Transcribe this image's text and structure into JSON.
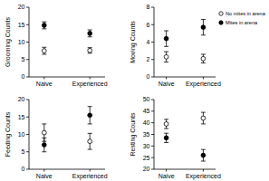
{
  "chart_data": [
    {
      "type": "dot",
      "y_label": "Grooming Counts",
      "categories": [
        "Naive",
        "Experienced"
      ],
      "ylim": [
        0,
        20
      ],
      "yticks": [
        0,
        5,
        10,
        15,
        20
      ],
      "series": [
        {
          "color": "#000000",
          "marker": "open",
          "values": [
            7.5,
            7.6
          ],
          "errors": [
            1.0,
            0.8
          ]
        },
        {
          "color": "#000000",
          "marker": "filled",
          "values": [
            14.8,
            12.5
          ],
          "errors": [
            1.0,
            1.0
          ]
        }
      ]
    },
    {
      "type": "dot",
      "y_label": "Moving Counts",
      "categories": [
        "Naive",
        "Experienced"
      ],
      "ylim": [
        0,
        8
      ],
      "yticks": [
        0,
        2,
        4,
        6,
        8
      ],
      "legend": "right",
      "series": [
        {
          "name": "No mites in arena",
          "color": "#000000",
          "marker": "open",
          "values": [
            2.3,
            2.1
          ],
          "errors": [
            0.6,
            0.5
          ]
        },
        {
          "name": "Mites in arena",
          "color": "#000000",
          "marker": "filled",
          "values": [
            4.4,
            5.7
          ],
          "errors": [
            0.9,
            0.9
          ]
        }
      ]
    },
    {
      "type": "dot",
      "y_label": "Feeding Counts",
      "categories": [
        "Naive",
        "Experienced"
      ],
      "ylim": [
        0,
        20
      ],
      "yticks": [
        0,
        5,
        10,
        15,
        20
      ],
      "series": [
        {
          "color": "#000000",
          "marker": "open",
          "values": [
            10.5,
            8.0
          ],
          "errors": [
            2.5,
            2.3
          ]
        },
        {
          "color": "#000000",
          "marker": "filled",
          "values": [
            7.0,
            15.5
          ],
          "errors": [
            2.0,
            2.5
          ]
        }
      ]
    },
    {
      "type": "dot",
      "y_label": "Resting Counts",
      "categories": [
        "Naive",
        "Experienced"
      ],
      "ylim": [
        20,
        50
      ],
      "yticks": [
        20,
        25,
        30,
        35,
        40,
        45,
        50
      ],
      "series": [
        {
          "color": "#000000",
          "marker": "open",
          "values": [
            39.5,
            42.0
          ],
          "errors": [
            2.0,
            2.5
          ]
        },
        {
          "color": "#000000",
          "marker": "filled",
          "values": [
            33.5,
            26.0
          ],
          "errors": [
            2.0,
            2.5
          ]
        }
      ]
    }
  ]
}
